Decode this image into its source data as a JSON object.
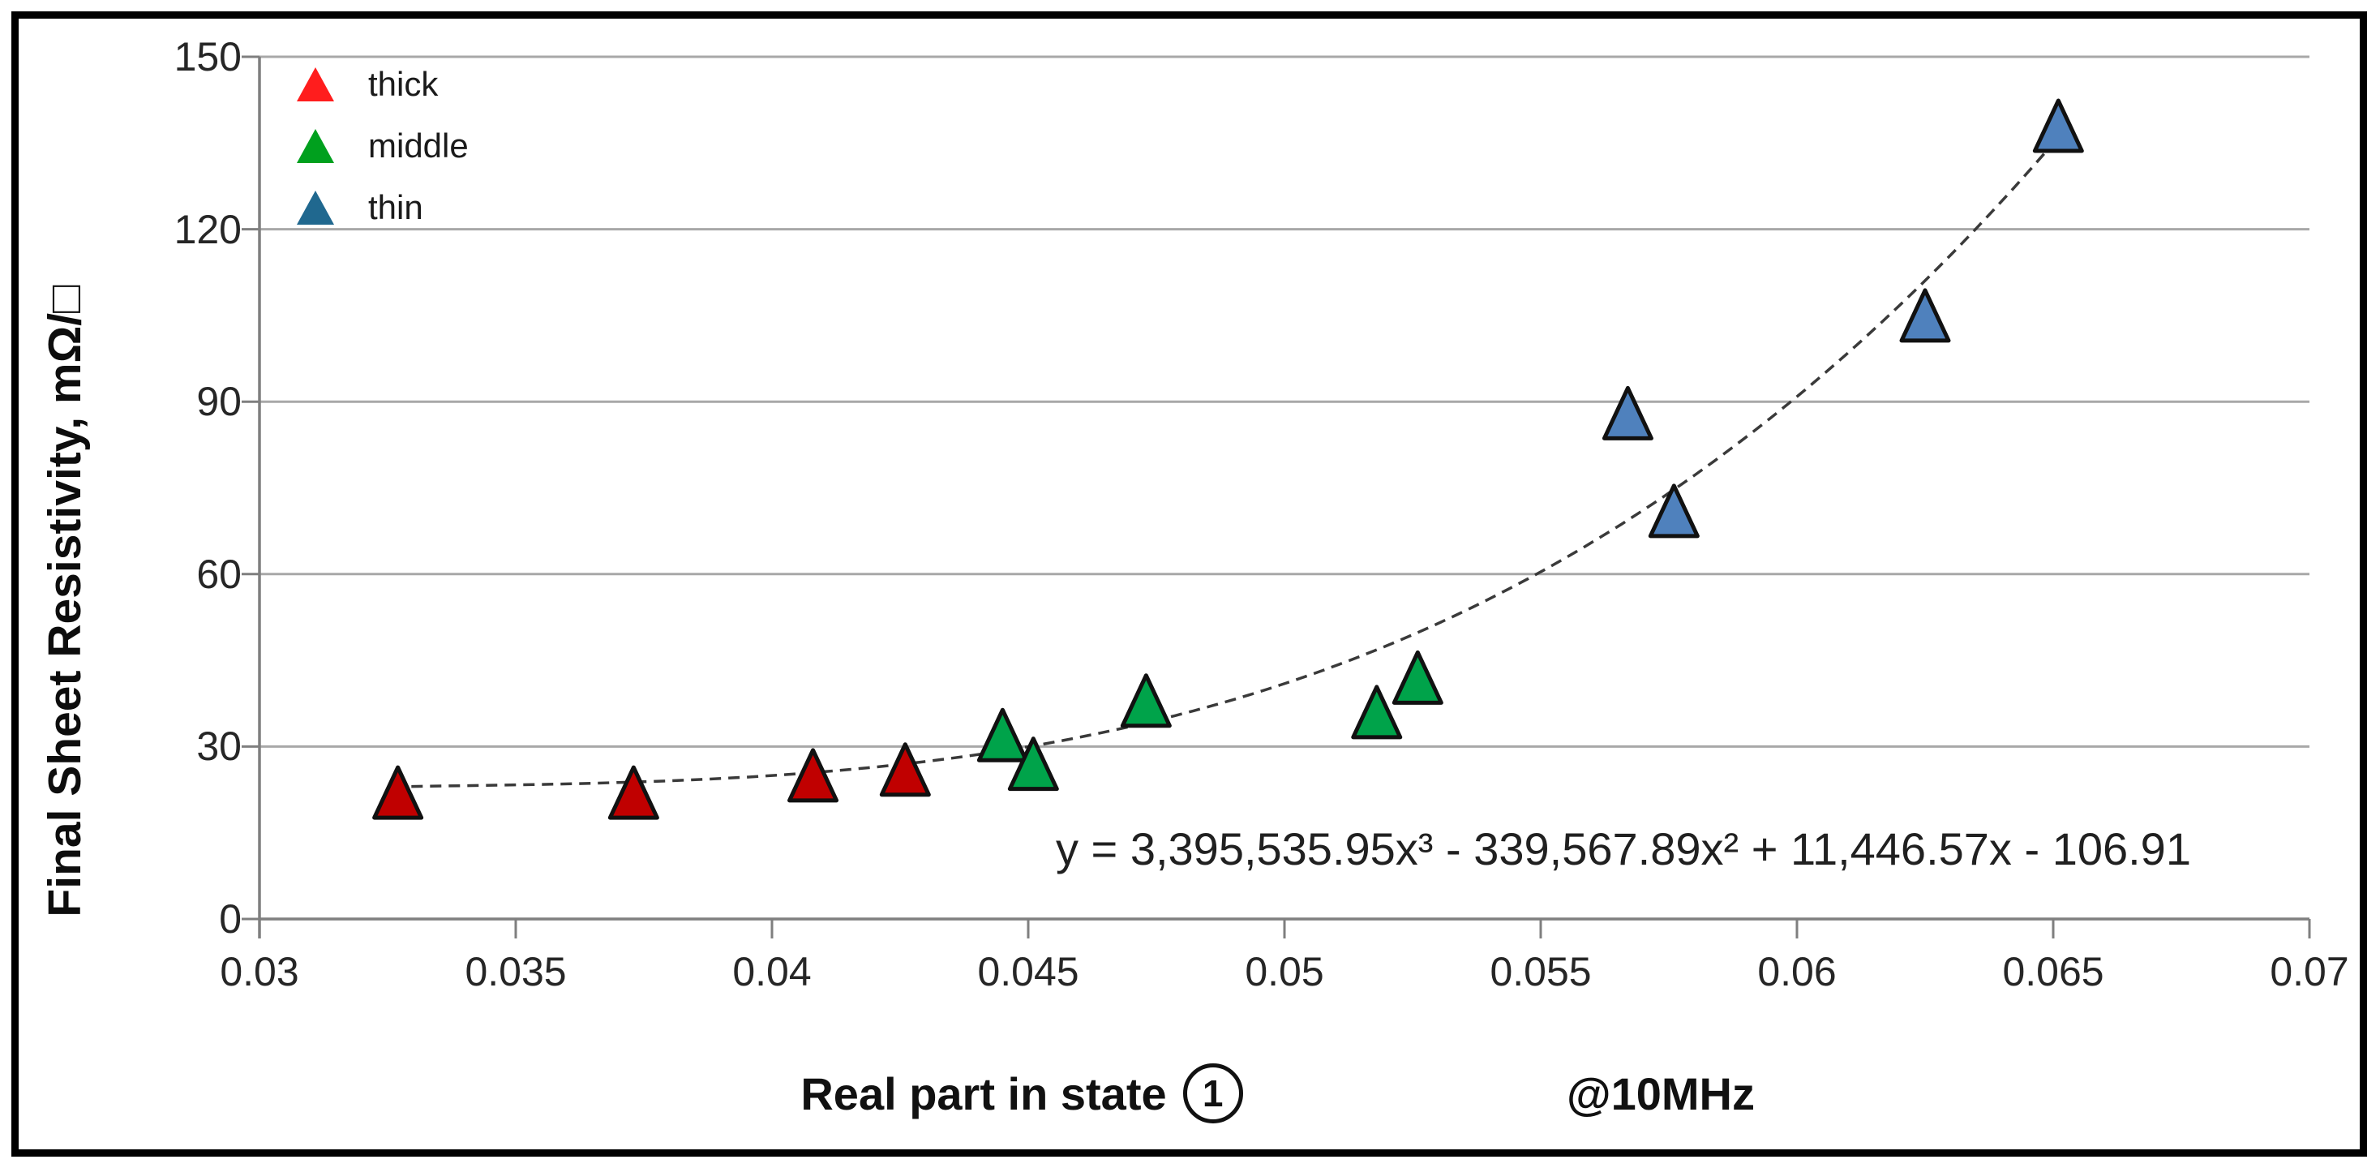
{
  "chart_data": {
    "type": "scatter",
    "title": "",
    "xlabel": "Real part in state",
    "xlabel_state_symbol": "1",
    "xlabel_annotation": "@10MHz",
    "ylabel": "Final Sheet Resistivity, mΩ/□",
    "xlim": [
      0.03,
      0.07
    ],
    "ylim": [
      0,
      150
    ],
    "x_ticks": [
      "0.03",
      "0.035",
      "0.04",
      "0.045",
      "0.05",
      "0.055",
      "0.06",
      "0.065",
      "0.07"
    ],
    "y_ticks": [
      "0",
      "30",
      "60",
      "90",
      "120",
      "150"
    ],
    "grid": true,
    "legend_position": "top-left",
    "series": [
      {
        "name": "thick",
        "marker": "triangle",
        "marker_color": "#c00000",
        "legend_color": "#ff1d1d",
        "points": [
          [
            0.0327,
            22
          ],
          [
            0.0373,
            22
          ],
          [
            0.0408,
            25
          ],
          [
            0.0426,
            26
          ]
        ]
      },
      {
        "name": "middle",
        "marker": "triangle",
        "marker_color": "#00a34a",
        "legend_color": "#00a01e",
        "points": [
          [
            0.0445,
            32
          ],
          [
            0.0451,
            27
          ],
          [
            0.0473,
            38
          ],
          [
            0.0518,
            36
          ],
          [
            0.0526,
            42
          ]
        ]
      },
      {
        "name": "thin",
        "marker": "triangle",
        "marker_color": "#4f81bd",
        "legend_color": "#20688f",
        "points": [
          [
            0.0567,
            88
          ],
          [
            0.0576,
            71
          ],
          [
            0.0625,
            105
          ],
          [
            0.0651,
            138
          ]
        ]
      }
    ],
    "trendline": {
      "equation": "y = 3,395,535.95x³ - 339,567.89x² + 11,446.57x - 106.91",
      "coefficients": [
        3395535.95,
        -339567.89,
        11446.57,
        -106.91
      ],
      "x_range": [
        0.0326,
        0.0653
      ],
      "style": "dashed"
    },
    "colors": {
      "gridline": "#a8a8a8",
      "axis": "#7f7f7f",
      "trendline": "#3a3a3a",
      "marker_outline": "#111111",
      "text": "#1a1a1a"
    }
  }
}
